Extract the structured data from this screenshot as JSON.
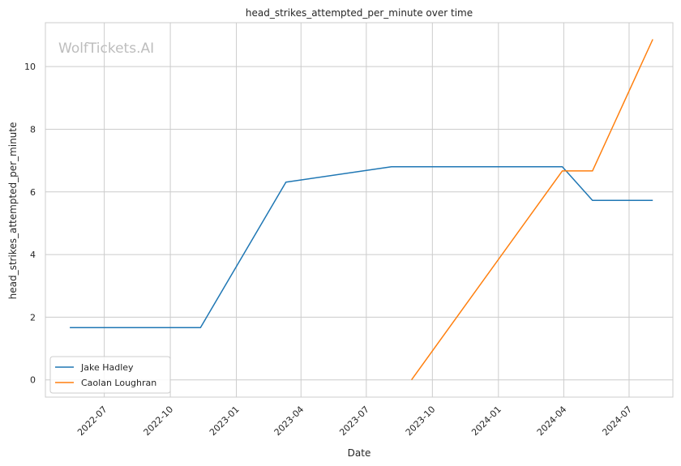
{
  "watermark": "WolfTickets.AI",
  "chart_data": {
    "type": "line",
    "title": "head_strikes_attempted_per_minute over time",
    "xlabel": "Date",
    "ylabel": "head_strikes_attempted_per_minute",
    "x_ticks": [
      "2022-07",
      "2022-10",
      "2023-01",
      "2023-04",
      "2023-07",
      "2023-10",
      "2024-01",
      "2024-04",
      "2024-07"
    ],
    "y_ticks": [
      0,
      2,
      4,
      6,
      8,
      10
    ],
    "xlim": [
      "2022-04-10",
      "2024-08-31"
    ],
    "ylim": [
      -0.55,
      11.4
    ],
    "grid": true,
    "legend_position": "lower-left",
    "series": [
      {
        "name": "Jake Hadley",
        "color": "#1f77b4",
        "points": [
          {
            "x": "2022-05-14",
            "y": 1.67
          },
          {
            "x": "2022-11-12",
            "y": 1.67
          },
          {
            "x": "2023-03-11",
            "y": 6.31
          },
          {
            "x": "2023-08-05",
            "y": 6.8
          },
          {
            "x": "2024-03-30",
            "y": 6.8
          },
          {
            "x": "2024-05-11",
            "y": 5.73
          },
          {
            "x": "2024-08-03",
            "y": 5.73
          }
        ]
      },
      {
        "name": "Caolan Loughran",
        "color": "#ff7f0e",
        "points": [
          {
            "x": "2023-09-02",
            "y": 0.0
          },
          {
            "x": "2024-03-30",
            "y": 6.67
          },
          {
            "x": "2024-05-11",
            "y": 6.67
          },
          {
            "x": "2024-08-03",
            "y": 10.87
          }
        ]
      }
    ]
  }
}
